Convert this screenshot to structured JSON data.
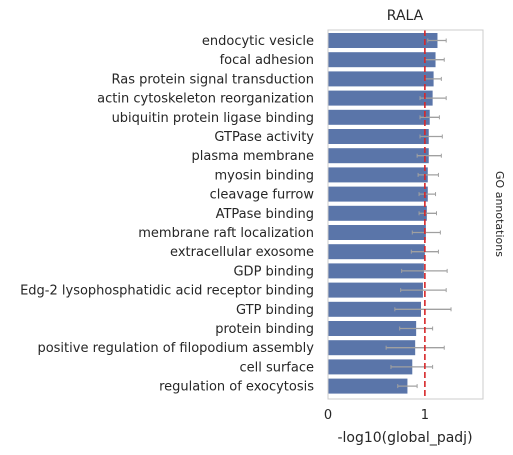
{
  "chart_data": {
    "type": "bar",
    "orientation": "horizontal",
    "title": "RALA",
    "xlabel": "-log10(global_padj)",
    "side_label": "GO annotations",
    "xlim": [
      0,
      1.6
    ],
    "xticks": [
      0,
      1
    ],
    "grid": false,
    "bar_color": "#5a75a9",
    "errorbar_color": "#a0a0a0",
    "reference_line": {
      "value": 1.0,
      "color": "#d62728",
      "style": "dashed"
    },
    "categories": [
      "endocytic vesicle",
      "focal adhesion",
      "Ras protein signal transduction",
      "actin cytoskeleton reorganization",
      "ubiquitin protein ligase binding",
      "GTPase activity",
      "plasma membrane",
      "myosin binding",
      "cleavage furrow",
      "ATPase binding",
      "membrane raft localization",
      "extracellular exosome",
      "GDP binding",
      "Edg-2 lysophosphatidic acid receptor binding",
      "GTP binding",
      "protein binding",
      "positive regulation of filopodium assembly",
      "cell surface",
      "regulation of exocytosis"
    ],
    "values": [
      1.13,
      1.11,
      1.09,
      1.08,
      1.05,
      1.04,
      1.04,
      1.03,
      1.03,
      1.02,
      1.01,
      1.0,
      0.99,
      0.98,
      0.96,
      0.91,
      0.9,
      0.87,
      0.82
    ],
    "error_low": [
      1.03,
      1.0,
      1.0,
      0.95,
      0.95,
      0.95,
      0.92,
      0.93,
      0.94,
      0.94,
      0.87,
      0.86,
      0.76,
      0.75,
      0.69,
      0.74,
      0.6,
      0.65,
      0.72
    ],
    "error_high": [
      1.22,
      1.2,
      1.17,
      1.22,
      1.15,
      1.18,
      1.17,
      1.14,
      1.11,
      1.12,
      1.16,
      1.14,
      1.23,
      1.22,
      1.27,
      1.08,
      1.2,
      1.08,
      0.92
    ]
  }
}
